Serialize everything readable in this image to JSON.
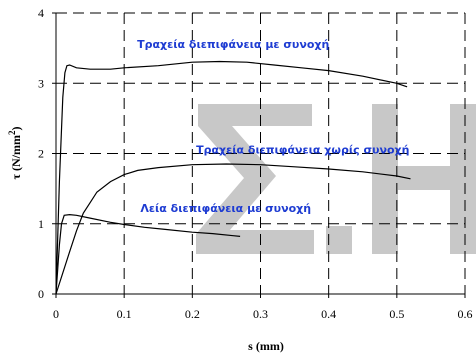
{
  "chart_data": {
    "type": "line",
    "xlabel": "s (mm)",
    "ylabel": "τ (N/mm²)",
    "ylabel_base": "τ (N/mm",
    "ylabel_sup": "2",
    "ylabel_tail": ")",
    "xlim": [
      0,
      0.6
    ],
    "ylim": [
      0,
      4
    ],
    "x_ticks": [
      0,
      0.1,
      0.2,
      0.3,
      0.4,
      0.5,
      0.6
    ],
    "x_tick_labels": [
      "0",
      "0.1",
      "0.2",
      "0.3",
      "0.4",
      "0.5",
      "0.6"
    ],
    "y_ticks": [
      0,
      1,
      2,
      3,
      4
    ],
    "y_tick_labels": [
      "0",
      "1",
      "2",
      "3",
      "4"
    ],
    "grid": true,
    "grid_style": "dashed",
    "line_color": "#000000",
    "annotation_color": "#1e3cd2",
    "watermark_color": "#c8c8c8",
    "series": [
      {
        "x": [
          0,
          0.005,
          0.01,
          0.013,
          0.016,
          0.02,
          0.03,
          0.05,
          0.08,
          0.1,
          0.15,
          0.2,
          0.24,
          0.28,
          0.32,
          0.36,
          0.4,
          0.45,
          0.5,
          0.515
        ],
        "y": [
          0,
          1.6,
          2.8,
          3.15,
          3.25,
          3.26,
          3.22,
          3.2,
          3.2,
          3.22,
          3.25,
          3.3,
          3.31,
          3.3,
          3.26,
          3.22,
          3.18,
          3.1,
          3.0,
          2.95
        ]
      },
      {
        "x": [
          0,
          0.01,
          0.02,
          0.03,
          0.04,
          0.05,
          0.06,
          0.08,
          0.1,
          0.12,
          0.15,
          0.2,
          0.25,
          0.3,
          0.35,
          0.4,
          0.45,
          0.5,
          0.52
        ],
        "y": [
          0,
          0.3,
          0.6,
          0.9,
          1.15,
          1.3,
          1.45,
          1.6,
          1.7,
          1.76,
          1.8,
          1.84,
          1.85,
          1.84,
          1.81,
          1.78,
          1.74,
          1.68,
          1.64
        ]
      },
      {
        "x": [
          0,
          0.005,
          0.008,
          0.012,
          0.02,
          0.03,
          0.05,
          0.08,
          0.1,
          0.13,
          0.16,
          0.2,
          0.23,
          0.26,
          0.27
        ],
        "y": [
          0,
          0.7,
          1.0,
          1.12,
          1.13,
          1.12,
          1.08,
          1.02,
          0.99,
          0.95,
          0.92,
          0.88,
          0.86,
          0.83,
          0.82
        ]
      }
    ],
    "annotations": [
      {
        "text": "Τραχεία διεπιφάνεια με συνοχή",
        "x": 0.26,
        "y": 3.5
      },
      {
        "text": "Τραχεία διεπιφάνεια χωρίς συνοχή",
        "x": 0.362,
        "y": 2.0
      },
      {
        "text": "Λεία διεπιφάνεια με συνοχή",
        "x": 0.249,
        "y": 1.17
      }
    ],
    "watermark": "Σ.Η"
  }
}
